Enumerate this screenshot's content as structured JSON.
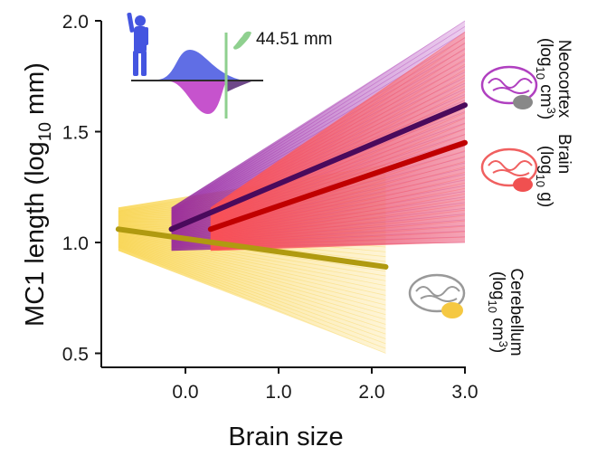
{
  "chart_data": {
    "type": "line",
    "title": "",
    "xlabel": "Brain size",
    "ylabel": "MC1 length (log10 mm)",
    "ylabel_parts": {
      "main": "MC1 length (log",
      "sub": "10",
      "end": " mm)"
    },
    "xlim": [
      -0.9,
      3.0
    ],
    "ylim": [
      0.45,
      2.0
    ],
    "x_ticks": [
      0.0,
      1.0,
      2.0,
      3.0
    ],
    "x_tick_labels": [
      "0.0",
      "1.0",
      "2.0",
      "3.0"
    ],
    "y_ticks": [
      0.5,
      1.0,
      1.5,
      2.0
    ],
    "y_tick_labels": [
      "0.5",
      "1.0",
      "1.5",
      "2.0"
    ],
    "grid": false,
    "series": [
      {
        "name": "Neocortex",
        "unit_label": {
          "pre": "(log",
          "sub": "10",
          "post": " cm",
          "sup": "3",
          "end": ")"
        },
        "color": "#4a0a5c",
        "band_color": "#a020a8",
        "x": [
          -0.15,
          3.0
        ],
        "y": [
          1.06,
          1.62
        ],
        "spread_end": [
          1.0,
          2.0
        ]
      },
      {
        "name": "Brain",
        "unit_label": {
          "pre": "(log",
          "sub": "10",
          "post": " g",
          "sup": "",
          "end": ")"
        },
        "color": "#c00000",
        "band_color": "#ff5a5a",
        "x": [
          0.27,
          3.0
        ],
        "y": [
          1.06,
          1.45
        ],
        "spread_end": [
          1.0,
          1.95
        ]
      },
      {
        "name": "Cerebellum",
        "unit_label": {
          "pre": "(log",
          "sub": "10",
          "post": " cm",
          "sup": "3",
          "end": ")"
        },
        "color": "#b09a10",
        "band_color": "#f7cf40",
        "x": [
          -0.72,
          2.15
        ],
        "y": [
          1.06,
          0.89
        ],
        "spread_end": [
          0.5,
          1.35
        ]
      }
    ],
    "inset": {
      "annotation": "44.51 mm",
      "upper_distribution_color": "#4455e0",
      "lower_distribution_color": "#c040c8",
      "marker_line_color": "#8fd08f"
    }
  }
}
